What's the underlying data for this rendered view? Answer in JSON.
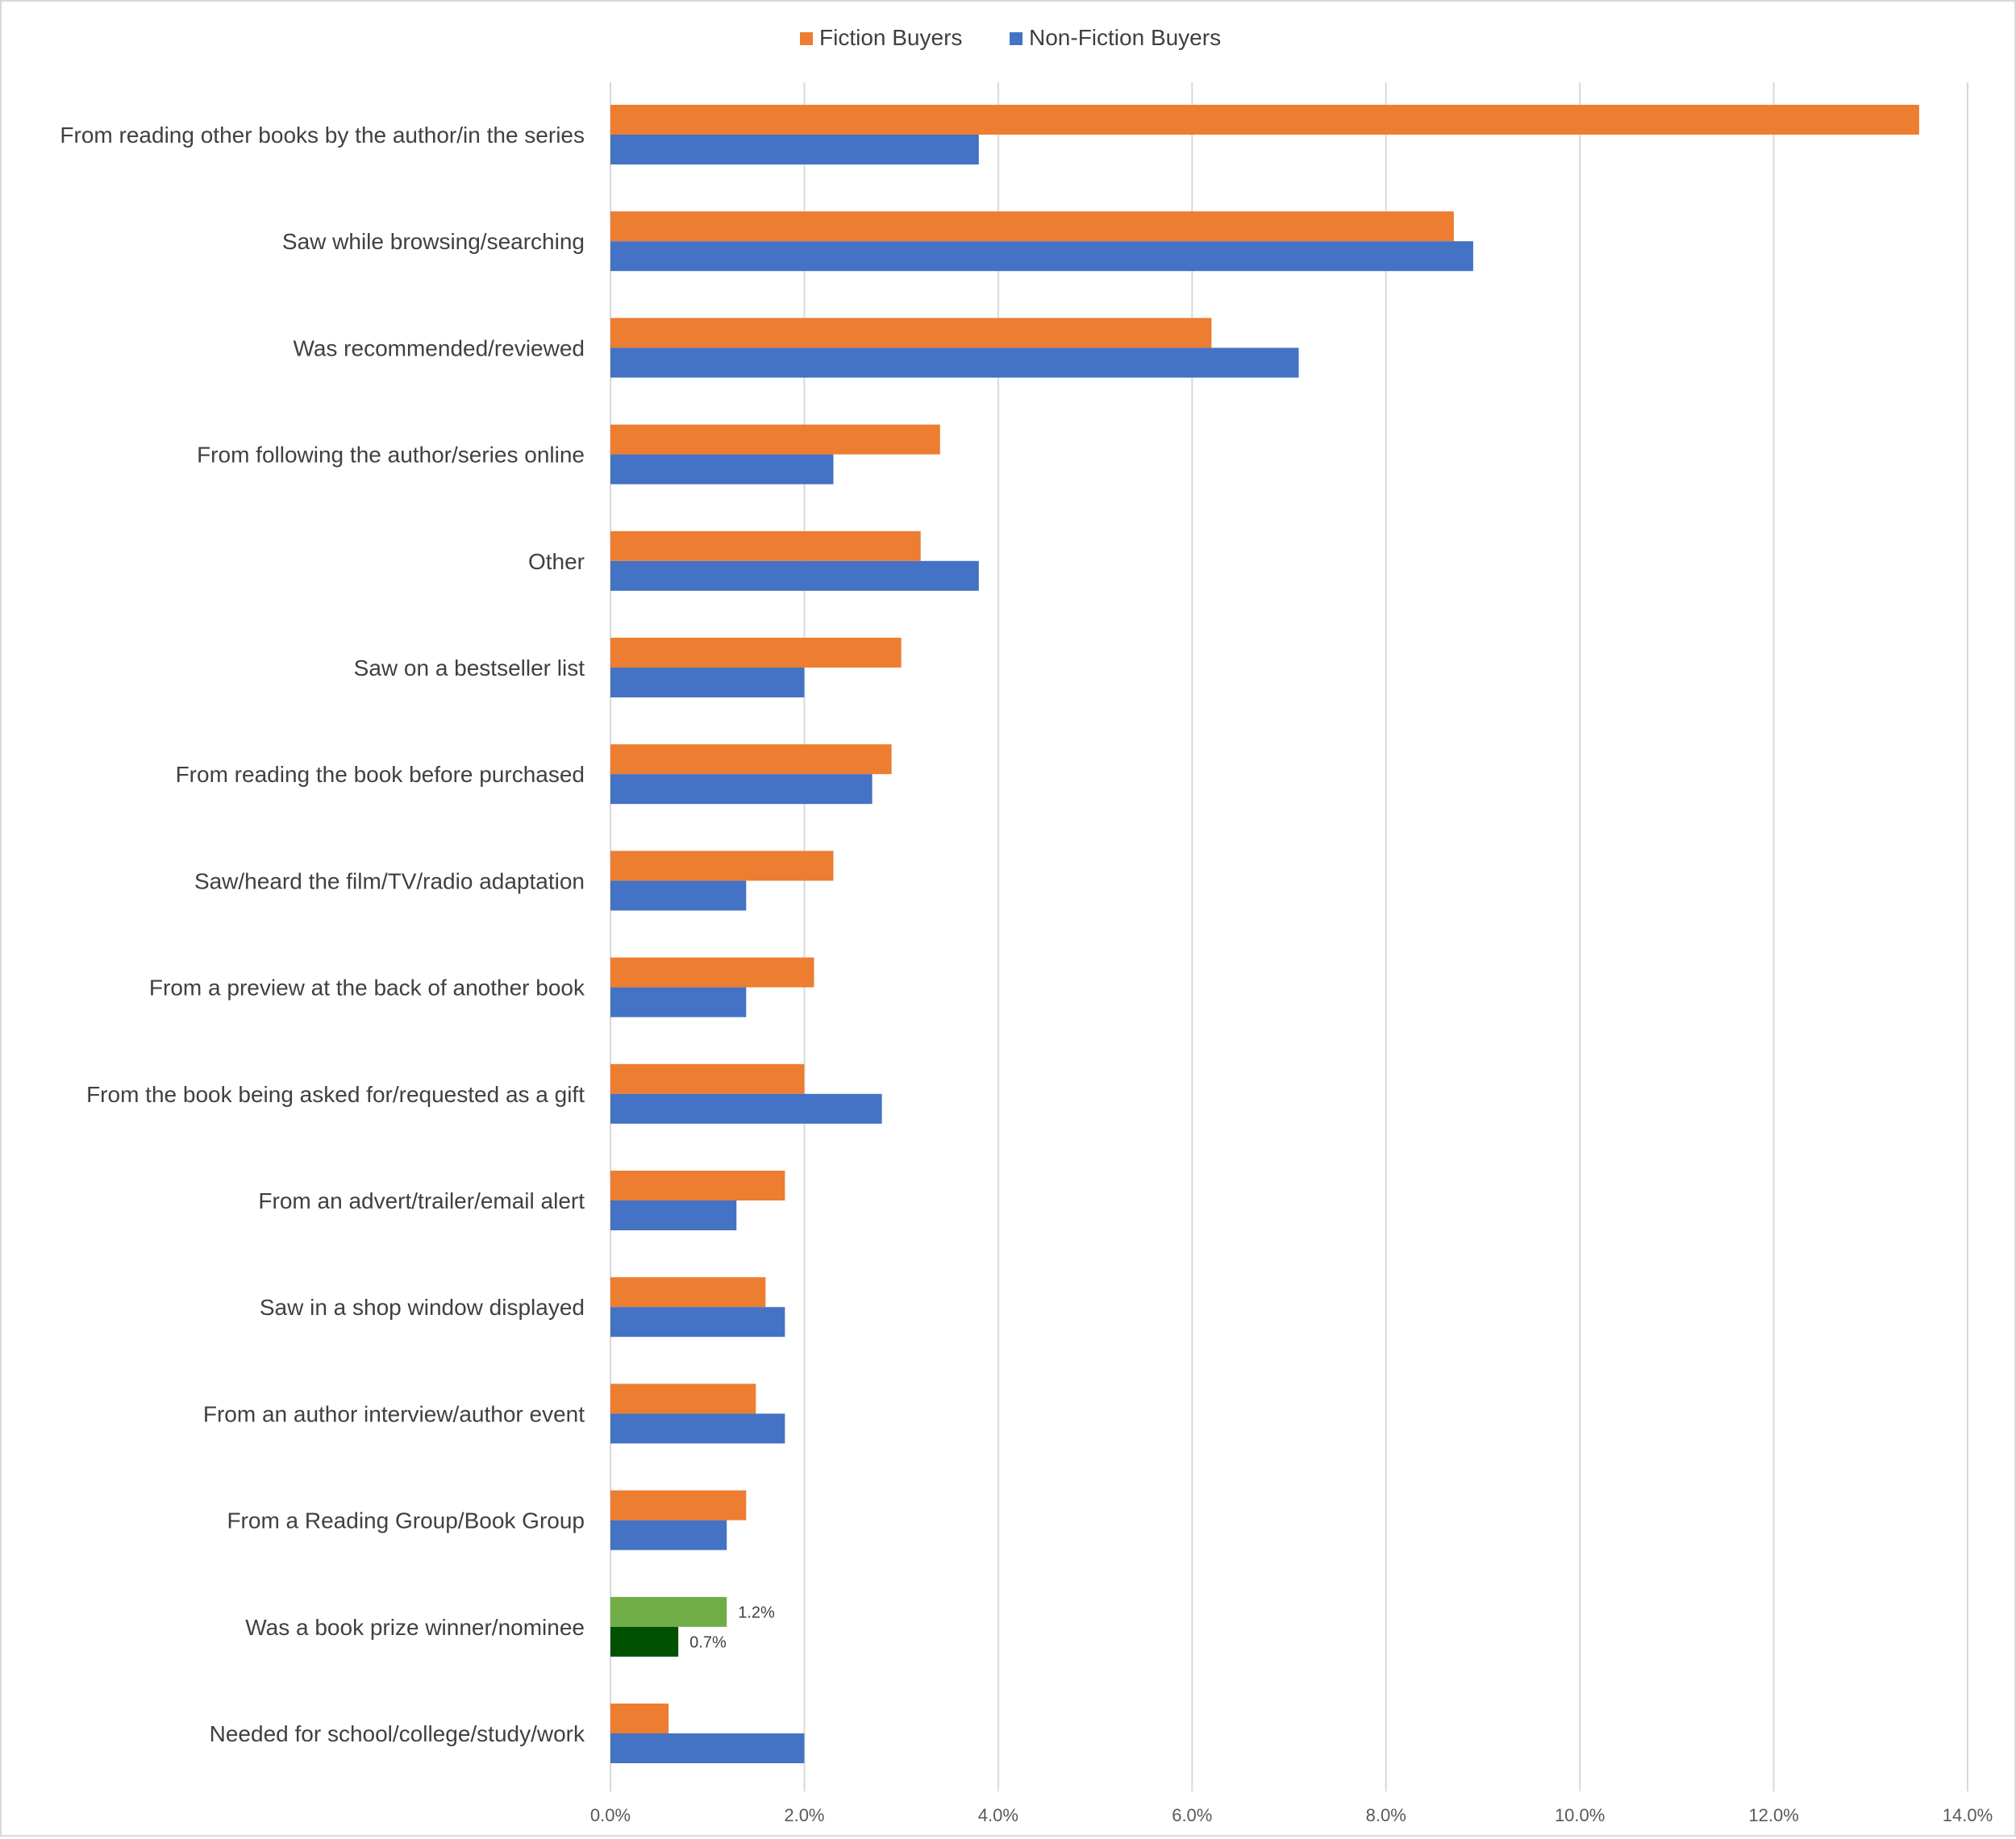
{
  "chart_data": {
    "type": "bar",
    "orientation": "horizontal",
    "title": "",
    "xlabel": "",
    "ylabel": "",
    "categories": [
      "From reading other books by the author/in the series",
      "Saw while browsing/searching",
      "Was recommended/reviewed",
      "From following the author/series online",
      "Other",
      "Saw on a bestseller list",
      "From reading the book before purchased",
      "Saw/heard the film/TV/radio adaptation",
      "From a preview at the back of another book",
      "From the book being asked for/requested as a gift",
      "From an advert/trailer/email alert",
      "Saw in a shop window displayed",
      "From an author interview/author event",
      "From a Reading Group/Book Group",
      "Was a book prize winner/nominee",
      "Needed for school/college/study/work"
    ],
    "series": [
      {
        "name": "Fiction Buyers",
        "color": "#ED7D31",
        "values": [
          13.5,
          8.7,
          6.2,
          3.4,
          3.2,
          3.0,
          2.9,
          2.3,
          2.1,
          2.0,
          1.8,
          1.6,
          1.5,
          1.4,
          1.2,
          0.6
        ]
      },
      {
        "name": "Non-Fiction Buyers",
        "color": "#4472C4",
        "values": [
          3.8,
          8.9,
          7.1,
          2.3,
          3.8,
          2.0,
          2.7,
          1.4,
          1.4,
          2.8,
          1.3,
          1.8,
          1.8,
          1.2,
          0.7,
          2.0
        ]
      }
    ],
    "highlight": {
      "category_index": 14,
      "colors": [
        "#70AD47",
        "#005000"
      ],
      "data_labels": [
        "1.2%",
        "0.7%"
      ]
    },
    "xlim": [
      0,
      14
    ],
    "xticks": [
      "0.0%",
      "2.0%",
      "4.0%",
      "6.0%",
      "8.0%",
      "10.0%",
      "12.0%",
      "14.0%"
    ],
    "grid": true,
    "legend_position": "top"
  }
}
